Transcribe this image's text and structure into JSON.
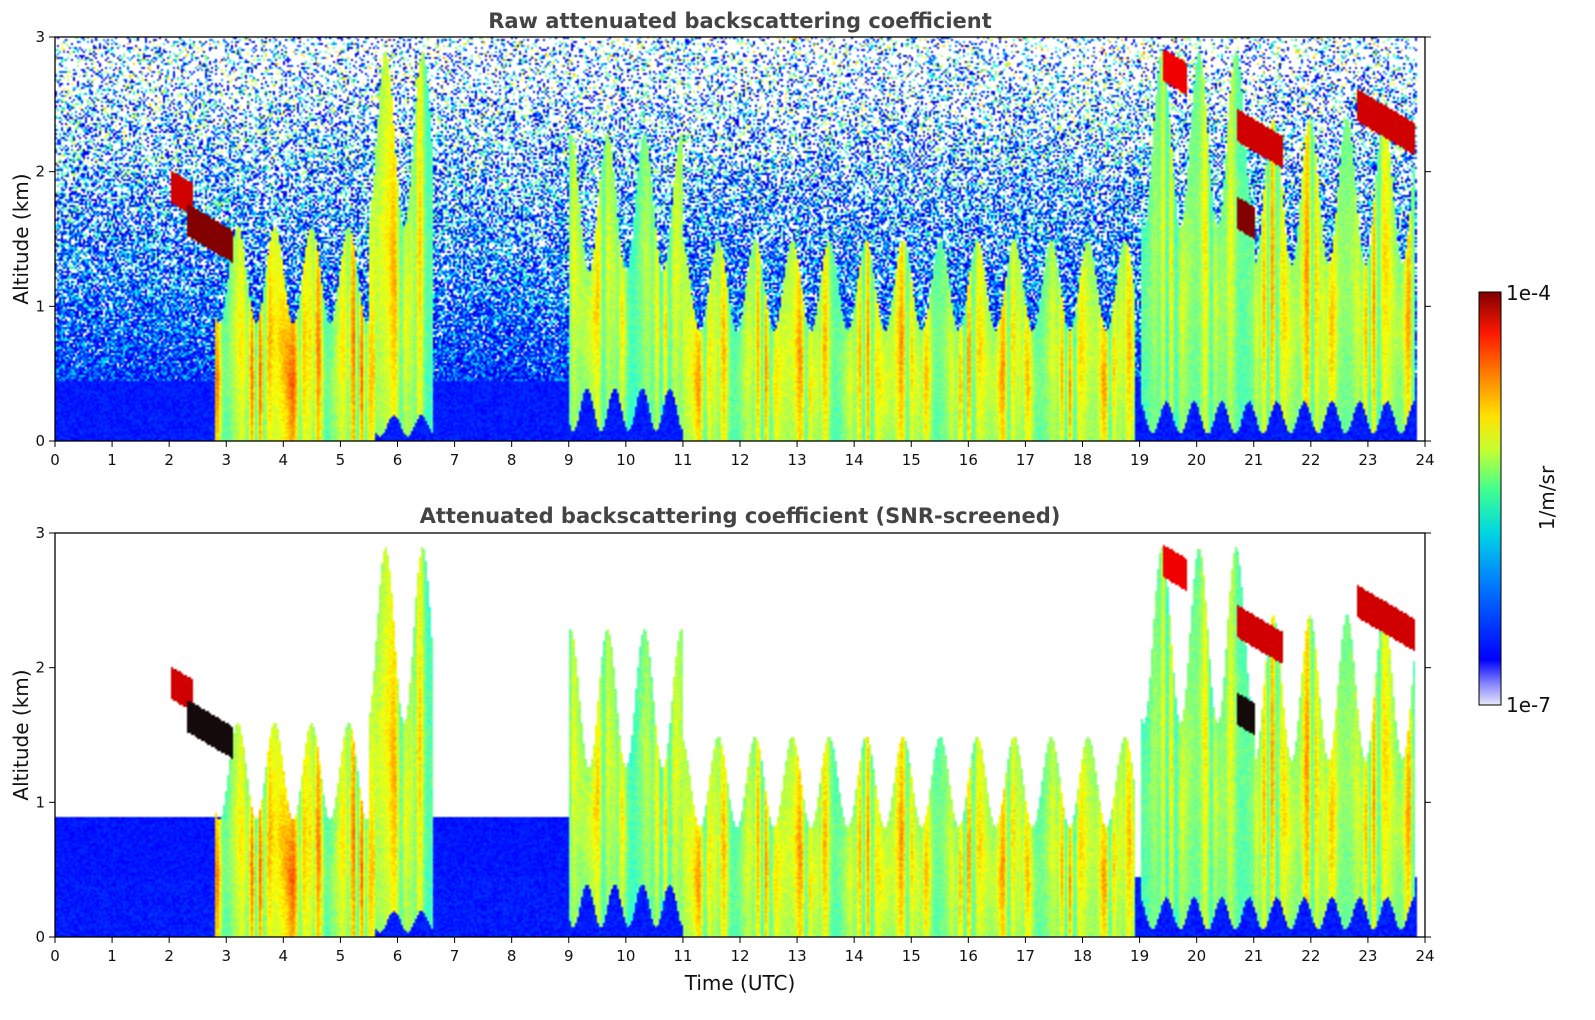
{
  "chart_data": [
    {
      "type": "heatmap",
      "title": "Raw attenuated backscattering coefficient",
      "xlabel": "",
      "ylabel": "Altitude (km)",
      "xlim": [
        0,
        24
      ],
      "ylim": [
        0,
        3
      ],
      "x_ticks": [
        "0",
        "1",
        "2",
        "3",
        "4",
        "5",
        "6",
        "7",
        "8",
        "9",
        "10",
        "11",
        "12",
        "13",
        "14",
        "15",
        "16",
        "17",
        "18",
        "19",
        "20",
        "21",
        "22",
        "23",
        "24"
      ],
      "y_ticks": [
        "0",
        "1",
        "2",
        "3"
      ],
      "screened": false
    },
    {
      "type": "heatmap",
      "title": "Attenuated backscattering coefficient (SNR-screened)",
      "xlabel": "Time (UTC)",
      "ylabel": "Altitude (km)",
      "xlim": [
        0,
        24
      ],
      "ylim": [
        0,
        3
      ],
      "x_ticks": [
        "0",
        "1",
        "2",
        "3",
        "4",
        "5",
        "6",
        "7",
        "8",
        "9",
        "10",
        "11",
        "12",
        "13",
        "14",
        "15",
        "16",
        "17",
        "18",
        "19",
        "20",
        "21",
        "22",
        "23",
        "24"
      ],
      "y_ticks": [
        "0",
        "1",
        "2",
        "3"
      ],
      "screened": true
    }
  ],
  "colorbar": {
    "max_label": "1e-4",
    "min_label": "1e-7",
    "unit_label": "1/m/sr",
    "colormap": "jet",
    "scale": "log"
  },
  "features": {
    "cloud_layers": [
      {
        "t0": 2.8,
        "t1": 5.6,
        "base_km": 0.0,
        "top_km": 1.6,
        "intensity": 0.75
      },
      {
        "t0": 5.5,
        "t1": 6.6,
        "base_km": 0.2,
        "top_km": 2.9,
        "intensity": 0.6
      },
      {
        "t0": 9.0,
        "t1": 11.0,
        "base_km": 0.4,
        "top_km": 2.3,
        "intensity": 0.55
      },
      {
        "t0": 11.0,
        "t1": 18.9,
        "base_km": 0.0,
        "top_km": 1.5,
        "intensity": 0.65
      },
      {
        "t0": 19.0,
        "t1": 21.0,
        "base_km": 0.3,
        "top_km": 2.9,
        "intensity": 0.5
      },
      {
        "t0": 21.0,
        "t1": 23.8,
        "base_km": 0.3,
        "top_km": 2.4,
        "intensity": 0.65
      }
    ],
    "elevated_layers": [
      {
        "t0": 2.0,
        "t1": 2.4,
        "alt_km": 1.9,
        "intensity": 0.95
      },
      {
        "t0": 2.3,
        "t1": 3.1,
        "alt_km": 1.65,
        "intensity": 0.98
      },
      {
        "t0": 20.7,
        "t1": 21.5,
        "alt_km": 2.35,
        "intensity": 0.95
      },
      {
        "t0": 20.7,
        "t1": 21.0,
        "alt_km": 1.7,
        "intensity": 0.98
      },
      {
        "t0": 22.8,
        "t1": 23.8,
        "alt_km": 2.5,
        "intensity": 0.95
      },
      {
        "t0": 19.4,
        "t1": 19.8,
        "alt_km": 2.8,
        "intensity": 0.9
      }
    ],
    "data_end_hour": 23.85
  },
  "colors": {
    "jet_low": "#00007f",
    "jet_high": "#7f0000",
    "background_noise_low": "#0022ff",
    "title_gray": "#444444"
  }
}
